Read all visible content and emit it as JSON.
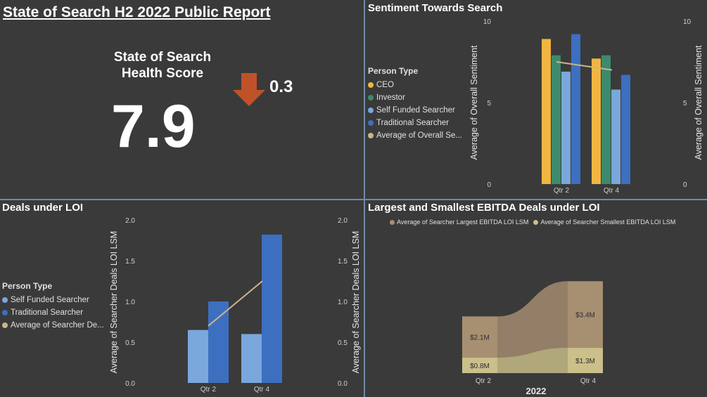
{
  "report": {
    "title": "State of Search H2 2022 Public Report",
    "score_label": "State of Search Health Score",
    "score_value": "7.9",
    "change_value": "0.3",
    "change_direction": "down",
    "change_color": "#c0522a"
  },
  "panels": {
    "sentiment_title": "Sentiment Towards Search",
    "deals_title": "Deals under LOI",
    "ebitda_title": "Largest and Smallest EBITDA Deals under LOI"
  },
  "colors": {
    "ceo": "#f2b640",
    "investor": "#3d8a6e",
    "self_funded": "#7aa7dc",
    "traditional": "#3d6fc0",
    "average_line": "#c9b48c",
    "largest": "#a78f72",
    "smallest": "#cbbf8a"
  },
  "chart_data": [
    {
      "type": "bar",
      "title": "Sentiment Towards Search",
      "ylabel": "Average of Overall Sentiment",
      "y2label": "Average of Overall Sentiment",
      "ylim": [
        0,
        10
      ],
      "yticks": [
        0,
        5,
        10
      ],
      "legend_title": "Person Type",
      "legend": [
        "CEO",
        "Investor",
        "Self Funded Searcher",
        "Traditional Searcher",
        "Average of Overall Se..."
      ],
      "categories": [
        "Qtr 2",
        "Qtr 4"
      ],
      "series": [
        {
          "name": "CEO",
          "values": [
            8.9,
            7.7
          ]
        },
        {
          "name": "Investor",
          "values": [
            7.9,
            7.9
          ]
        },
        {
          "name": "Self Funded Searcher",
          "values": [
            6.9,
            5.8
          ]
        },
        {
          "name": "Traditional Searcher",
          "values": [
            9.2,
            6.7
          ]
        }
      ],
      "line_series": {
        "name": "Average of Overall Se...",
        "values": [
          7.5,
          7.0
        ]
      }
    },
    {
      "type": "bar",
      "title": "Deals under LOI",
      "ylabel": "Average of Searcher Deals LOI LSM",
      "y2label": "Average of Searcher Deals LOI LSM",
      "ylim": [
        0,
        2
      ],
      "yticks": [
        "0.0",
        "0.5",
        "1.0",
        "1.5",
        "2.0"
      ],
      "legend_title": "Person Type",
      "legend": [
        "Self Funded Searcher",
        "Traditional Searcher",
        "Average of Searcher De..."
      ],
      "categories": [
        "Qtr 2",
        "Qtr 4"
      ],
      "series": [
        {
          "name": "Self Funded Searcher",
          "values": [
            0.65,
            0.6
          ]
        },
        {
          "name": "Traditional Searcher",
          "values": [
            1.0,
            1.82
          ]
        }
      ],
      "line_series": {
        "name": "Average of Searcher De...",
        "values": [
          0.7,
          1.25
        ]
      }
    },
    {
      "type": "area",
      "title": "Largest and Smallest EBITDA Deals under LOI",
      "xlabel": "2022",
      "legend": [
        "Average of Searcher Largest EBITDA LOI LSM",
        "Average of Searcher Smallest EBITDA LOI LSM"
      ],
      "categories": [
        "Qtr 2",
        "Qtr 4"
      ],
      "series": [
        {
          "name": "Average of Searcher Largest EBITDA LOI LSM",
          "values": [
            2.1,
            3.4
          ],
          "labels": [
            "$2.1M",
            "$3.4M"
          ]
        },
        {
          "name": "Average of Searcher Smallest EBITDA LOI LSM",
          "values": [
            0.8,
            1.3
          ],
          "labels": [
            "$0.8M",
            "$1.3M"
          ]
        }
      ]
    }
  ]
}
